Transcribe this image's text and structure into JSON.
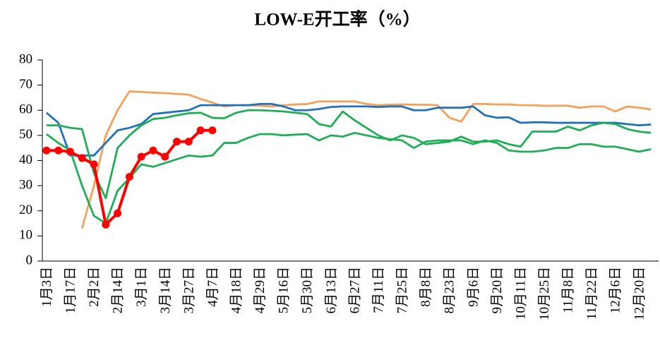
{
  "chart_data": {
    "type": "line",
    "title": "LOW-E开工率（%）",
    "categories": [
      "1月3日",
      null,
      "1月17日",
      null,
      "2月2日",
      null,
      "2月14日",
      null,
      "3月1日",
      null,
      "3月14日",
      null,
      "3月27日",
      null,
      "4月7日",
      null,
      "4月18日",
      null,
      "4月29日",
      null,
      "5月16日",
      null,
      "5月30日",
      null,
      "6月13日",
      null,
      "6月27日",
      null,
      "7月11日",
      null,
      "7月25日",
      null,
      "8月8日",
      null,
      "8月23日",
      null,
      "9月6日",
      null,
      "9月20日",
      null,
      "10月11日",
      null,
      "10月25日",
      null,
      "11月8日",
      null,
      "11月22日",
      null,
      "12月6日",
      null,
      "12月20日",
      null
    ],
    "series": [
      {
        "color": "#f4a25a",
        "values": [
          null,
          null,
          null,
          13,
          30,
          50,
          60,
          67.5,
          67.3,
          67,
          66.8,
          66.5,
          66.2,
          64.5,
          63,
          61.5,
          62,
          62,
          61.8,
          61.5,
          62,
          62.3,
          62.5,
          63.5,
          63.5,
          63.5,
          63.5,
          62.5,
          62,
          62.2,
          62.3,
          62.2,
          62.2,
          62,
          57,
          55.5,
          62.5,
          62.5,
          62.3,
          62.3,
          62,
          62,
          61.8,
          61.8,
          61.8,
          61,
          61.5,
          61.5,
          59.5,
          61.5,
          61,
          60.3
        ]
      },
      {
        "color": "#2271b8",
        "values": [
          59,
          55,
          42,
          42,
          42,
          47,
          52,
          53,
          54.5,
          58.5,
          59,
          59.5,
          60,
          62,
          62,
          62,
          62,
          62,
          62.5,
          62.5,
          61.5,
          60,
          60,
          60.5,
          61.3,
          61.5,
          61.5,
          61.5,
          61.3,
          61.5,
          61.5,
          60,
          60,
          61,
          61,
          61,
          61.5,
          58,
          57,
          57.2,
          55,
          55.2,
          55.2,
          55,
          55,
          55,
          55,
          55,
          55,
          54.5,
          54,
          54.3
        ]
      },
      {
        "color": "#1fae55",
        "values": [
          54,
          54,
          53,
          52.5,
          35,
          25,
          45,
          50,
          54,
          56.5,
          57,
          58,
          58.8,
          59,
          57,
          56.8,
          59,
          60,
          60,
          59.8,
          59.5,
          59,
          58.5,
          54.5,
          53.5,
          59.5,
          56,
          53,
          50,
          48,
          50,
          49,
          46.5,
          47,
          47.5,
          49.5,
          47.5,
          47.5,
          48,
          46.5,
          45.5,
          51.5,
          51.5,
          51.5,
          53.5,
          52,
          54,
          55,
          54.5,
          52.5,
          51.5,
          51
        ]
      },
      {
        "color": "#1fae55",
        "values": [
          50.5,
          47,
          44,
          30,
          18,
          15,
          28,
          33,
          38.5,
          37.5,
          39,
          40.5,
          42,
          41.5,
          42,
          47,
          47,
          49,
          50.5,
          50.5,
          50,
          50.3,
          50.5,
          48,
          50,
          49.5,
          51,
          50,
          49,
          48.5,
          48,
          45,
          47.5,
          48,
          48,
          48,
          46.5,
          48,
          47,
          44,
          43.5,
          43.5,
          44,
          45,
          45,
          46.5,
          46.5,
          45.5,
          45.5,
          44.5,
          43.5,
          44.5
        ]
      },
      {
        "color": "#ff0000",
        "markers": true,
        "values": [
          44,
          44,
          43.5,
          41,
          38.5,
          14.5,
          19,
          33.5,
          41.5,
          44,
          41.5,
          47.5,
          47.5,
          52,
          52,
          null,
          null,
          null,
          null,
          null,
          null,
          null,
          null,
          null,
          null,
          null,
          null,
          null,
          null,
          null,
          null,
          null,
          null,
          null,
          null,
          null,
          null,
          null,
          null,
          null,
          null,
          null,
          null,
          null,
          null,
          null,
          null,
          null,
          null,
          null,
          null,
          null
        ]
      }
    ],
    "ylim": [
      0,
      80
    ],
    "yticks": [
      0,
      10,
      20,
      30,
      40,
      50,
      60,
      70,
      80
    ],
    "grid": false
  }
}
